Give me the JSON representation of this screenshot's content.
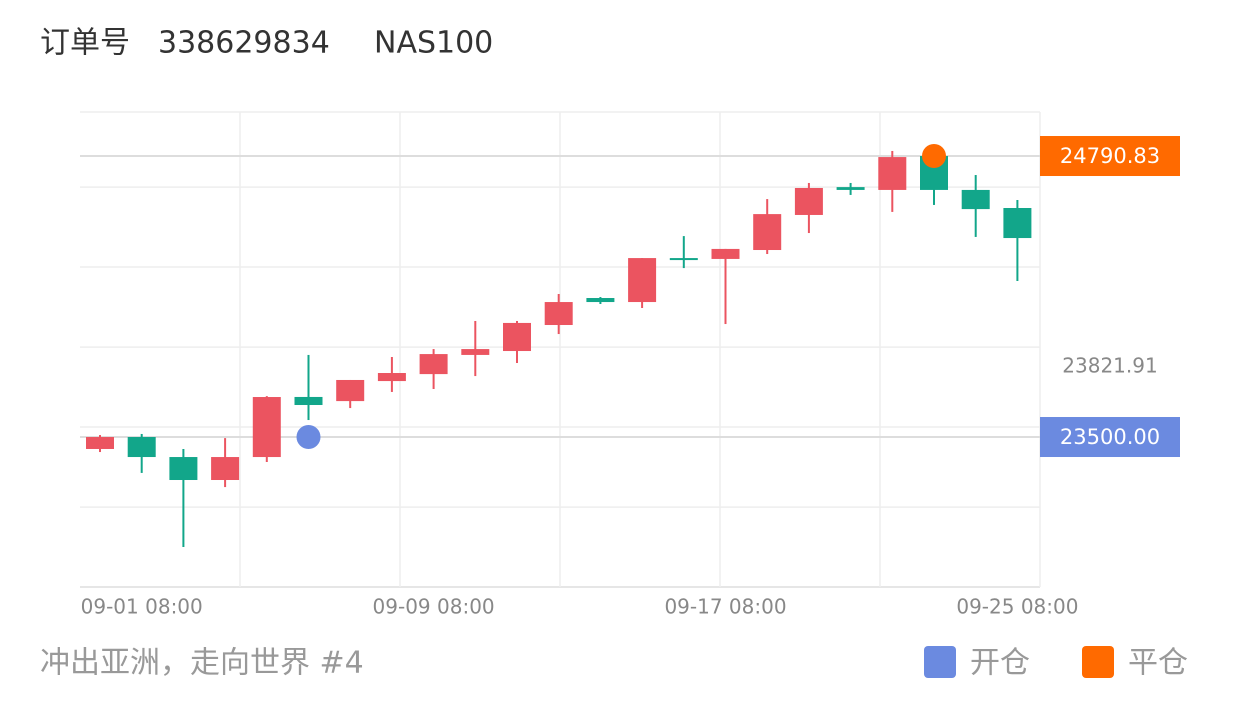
{
  "header": {
    "order_label": "订单号",
    "order_id": "338629834",
    "symbol": "NAS100"
  },
  "chart_data": {
    "type": "candlestick",
    "categories": [
      null,
      "09-01 08:00",
      null,
      null,
      null,
      null,
      null,
      null,
      "09-09 08:00",
      null,
      null,
      null,
      null,
      null,
      null,
      "09-17 08:00",
      null,
      null,
      null,
      null,
      null,
      null,
      "09-25 08:00"
    ],
    "open": [
      23445,
      23500,
      23408,
      23302.5,
      23408,
      23684,
      23665,
      23757,
      23789,
      23877,
      23895,
      24014.5,
      24138.5,
      24120,
      24322,
      24318,
      24359,
      24520,
      24648,
      24635,
      24790.8,
      24635,
      24552
    ],
    "high": [
      23509,
      23514,
      23445,
      23495,
      23688,
      23877,
      23762,
      23867.5,
      23904,
      24033,
      24033,
      24157,
      24143,
      24322,
      24423,
      24364,
      24593,
      24667,
      24667,
      24814,
      24791,
      24703.5,
      24589
    ],
    "low": [
      23431,
      23335,
      22994.7,
      23270,
      23385,
      23578,
      23633,
      23707,
      23720.5,
      23780,
      23840,
      23973,
      24111,
      24092.6,
      24276,
      24019,
      24340.6,
      24437,
      24612,
      24534,
      24566,
      24419,
      24216.6
    ],
    "close": [
      23500,
      23408,
      23302.5,
      23408,
      23683.7,
      23647,
      23762,
      23794,
      23881,
      23904,
      24024,
      24120,
      24120,
      24322,
      24313,
      24364,
      24524,
      24644,
      24635,
      24786,
      24635,
      24547,
      24414
    ],
    "up_color": "#eb5460",
    "down_color": "#12a68a",
    "ylim": [
      22811,
      24993
    ],
    "yticks": [
      23178,
      23546,
      23913,
      24281,
      24648
    ],
    "grid": true,
    "markers": {
      "names": [
        "开仓",
        "平仓"
      ],
      "colors": [
        "#6b8ae0",
        "#ff6a00"
      ],
      "at": [
        5,
        20
      ],
      "values": [
        23500,
        24790.83
      ],
      "value_labels": [
        "23500.00",
        "24790.83"
      ]
    },
    "last_price": 23821.91
  },
  "footer": {
    "strategy": "冲出亚洲，走向世界 #4"
  }
}
